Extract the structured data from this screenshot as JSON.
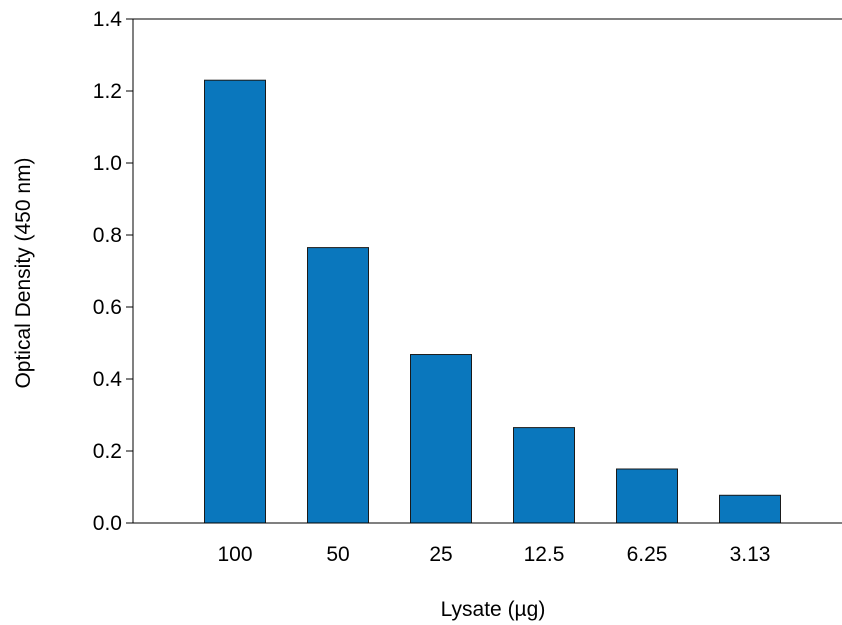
{
  "chart_data": {
    "type": "bar",
    "title": "",
    "xlabel": "Lysate (µg)",
    "ylabel": "Optical Density (450 nm)",
    "categories": [
      "100",
      "50",
      "25",
      "12.5",
      "6.25",
      "3.13"
    ],
    "values": [
      1.23,
      0.765,
      0.468,
      0.265,
      0.15,
      0.077
    ],
    "ylim": [
      0,
      1.4
    ],
    "yticks": [
      "0.0",
      "0.2",
      "0.4",
      "0.6",
      "0.8",
      "1.0",
      "1.2",
      "1.4"
    ],
    "grid": false,
    "bar_color": "#0a77bd"
  }
}
